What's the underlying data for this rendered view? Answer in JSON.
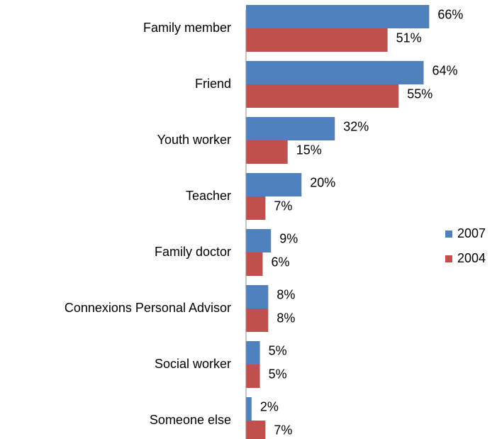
{
  "chart_data": {
    "type": "hbar",
    "categories": [
      "Family member",
      "Friend",
      "Youth worker",
      "Teacher",
      "Family doctor",
      "Connexions Personal Advisor",
      "Social worker",
      "Someone else"
    ],
    "series": [
      {
        "name": "2007",
        "color": "#4f81bd",
        "values": [
          66,
          64,
          32,
          20,
          9,
          8,
          5,
          2
        ],
        "value_labels": [
          "66%",
          "64%",
          "32%",
          "20%",
          "9%",
          "8%",
          "5%",
          "2%"
        ]
      },
      {
        "name": "2004",
        "color": "#c0504d",
        "values": [
          51,
          55,
          15,
          7,
          6,
          8,
          5,
          7
        ],
        "value_labels": [
          "51%",
          "55%",
          "15%",
          "7%",
          "6%",
          "8%",
          "5%",
          "7%"
        ]
      }
    ],
    "xlim": [
      0,
      70
    ],
    "legend": "right"
  }
}
